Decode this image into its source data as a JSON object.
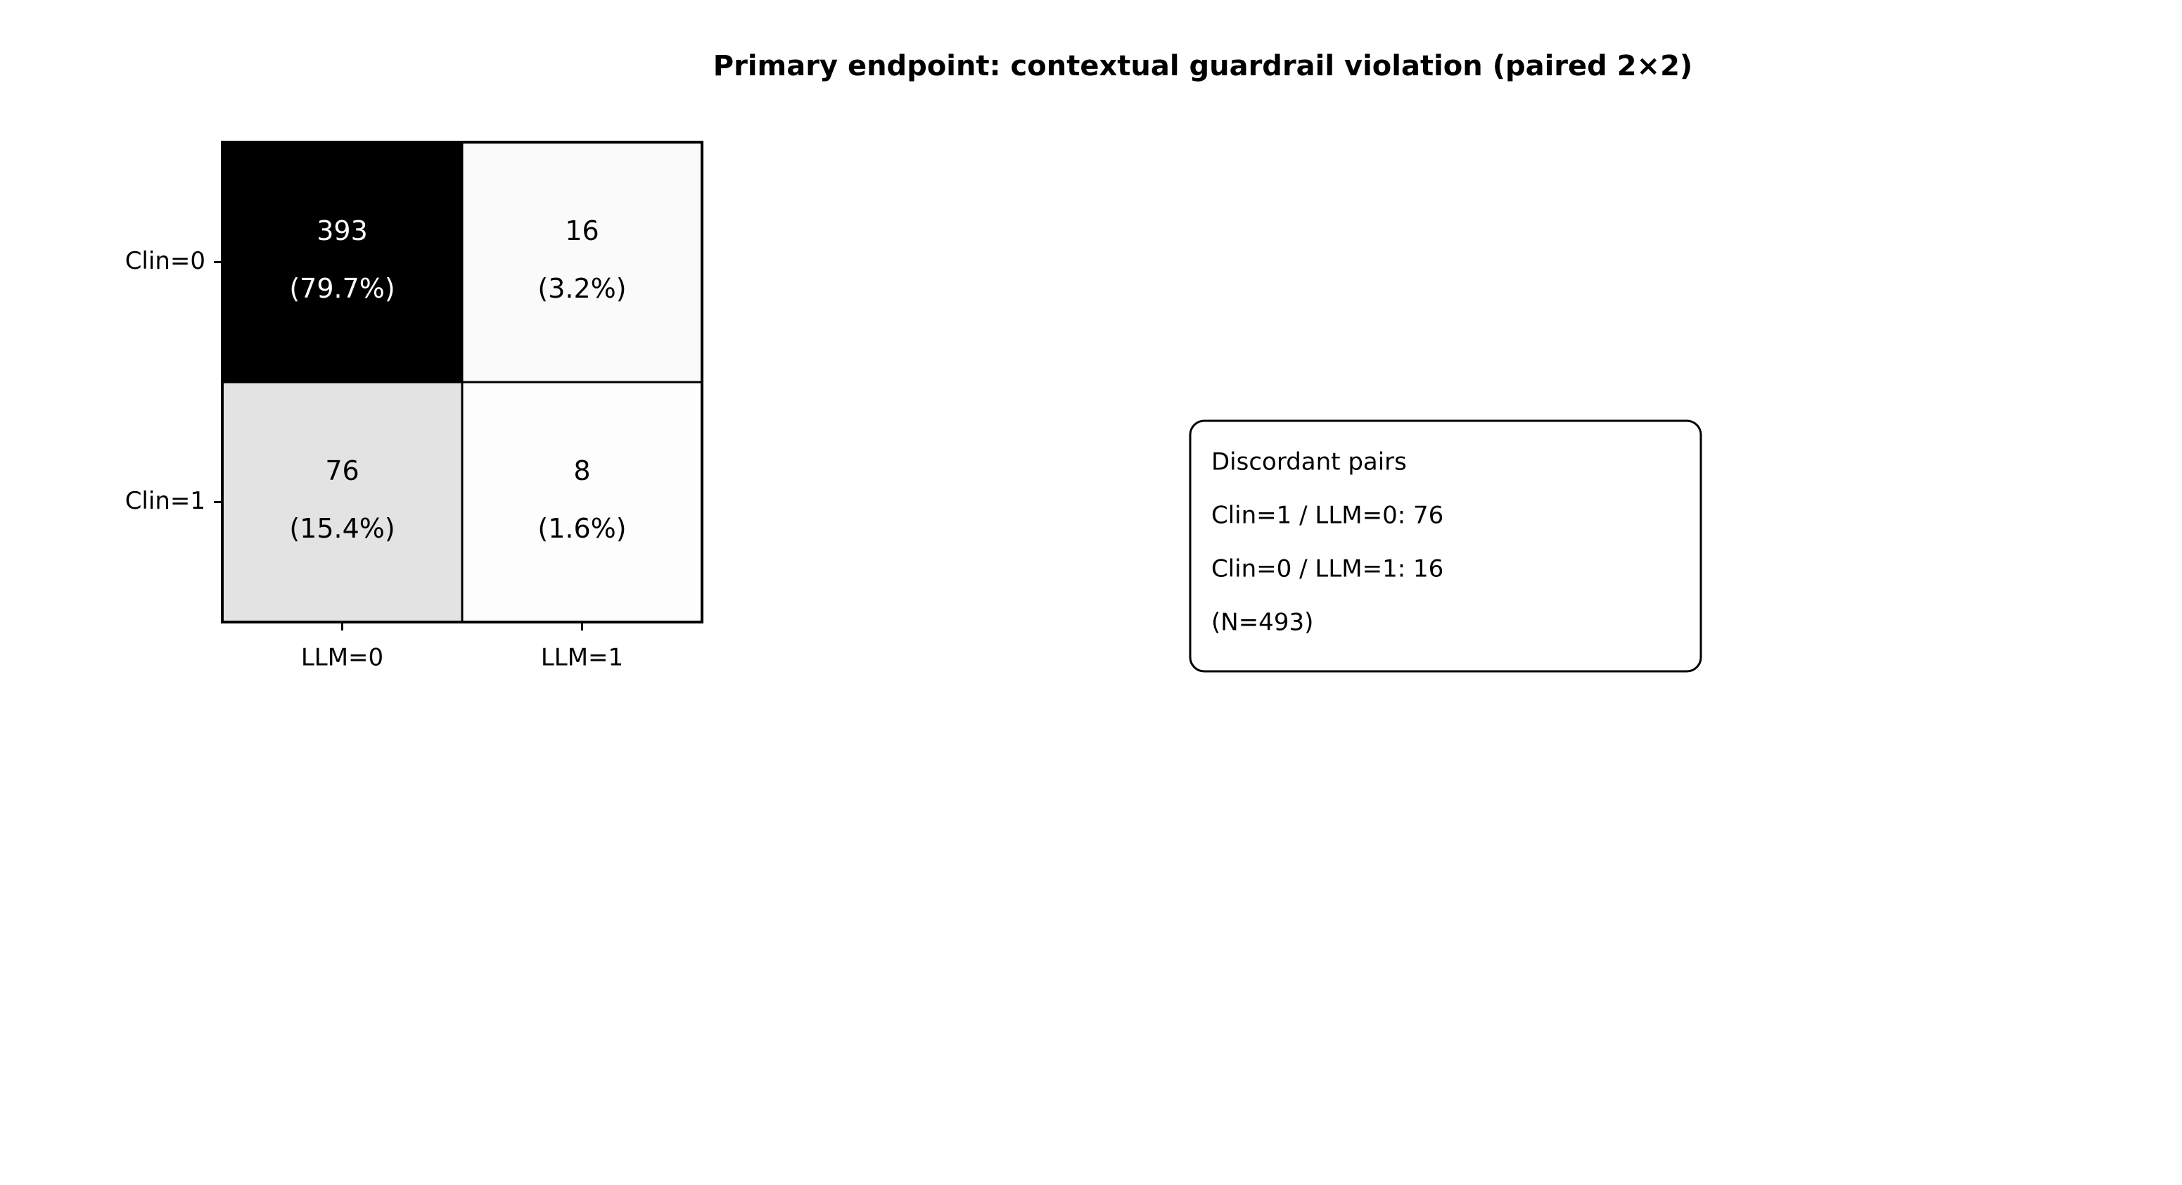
{
  "chart_data": {
    "type": "heatmap",
    "title": "Primary endpoint: contextual guardrail violation (paired 2×2)",
    "x_categories": [
      "LLM=0",
      "LLM=1"
    ],
    "y_categories": [
      "Clin=0",
      "Clin=1"
    ],
    "values": [
      [
        393,
        16
      ],
      [
        76,
        8
      ]
    ],
    "share_labels": [
      [
        "(79.7%)",
        "(3.2%)"
      ],
      [
        "(15.4%)",
        "(1.6%)"
      ]
    ],
    "colormap": [
      "#ffffff",
      "#f0f0f0",
      "#d9d9d9",
      "#bdbdbd",
      "#969696",
      "#737373",
      "#525252",
      "#252525",
      "#000000"
    ],
    "annotation": [
      "Discordant pairs",
      "Clin=1 / LLM=0: 76",
      "Clin=0 / LLM=1: 16",
      "(N=493)"
    ]
  }
}
